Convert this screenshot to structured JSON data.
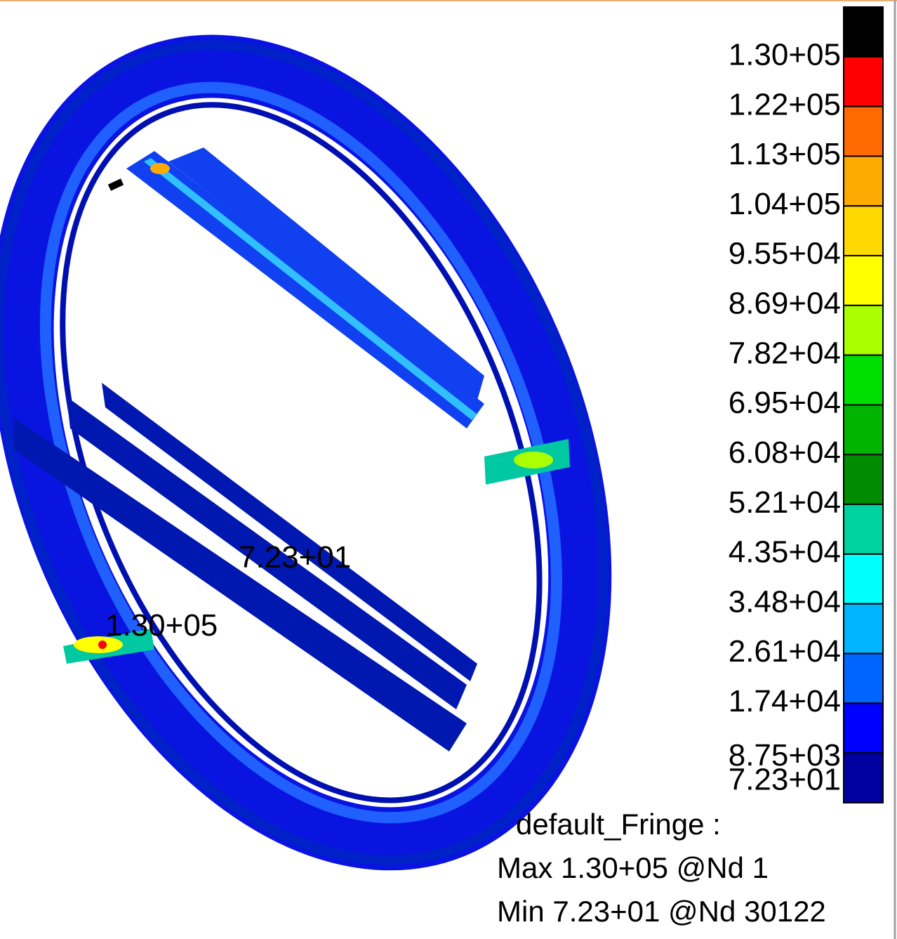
{
  "legend": {
    "levels": [
      {
        "label": "1.30+05",
        "color": "#ff0000"
      },
      {
        "label": "1.22+05",
        "color": "#ff6a00"
      },
      {
        "label": "1.13+05",
        "color": "#ffaa00"
      },
      {
        "label": "1.04+05",
        "color": "#ffd800"
      },
      {
        "label": "9.55+04",
        "color": "#ffff00"
      },
      {
        "label": "8.69+04",
        "color": "#aaff00"
      },
      {
        "label": "7.82+04",
        "color": "#00e000"
      },
      {
        "label": "6.95+04",
        "color": "#00b400"
      },
      {
        "label": "6.08+04",
        "color": "#008c00"
      },
      {
        "label": "5.21+04",
        "color": "#00d2a0"
      },
      {
        "label": "4.35+04",
        "color": "#00ffff"
      },
      {
        "label": "3.48+04",
        "color": "#00b4ff"
      },
      {
        "label": "2.61+04",
        "color": "#0064ff"
      },
      {
        "label": "1.74+04",
        "color": "#0000ff"
      },
      {
        "label": "8.75+03",
        "color": "#0000a0"
      },
      {
        "label": "7.23+01"
      }
    ],
    "top_color": "#000000",
    "title": "default_Fringe :",
    "max": "Max 1.30+05 @Nd 1",
    "min": "Min 7.23+01 @Nd 30122"
  },
  "annotations": [
    "7.23+01",
    "1.30+05"
  ]
}
